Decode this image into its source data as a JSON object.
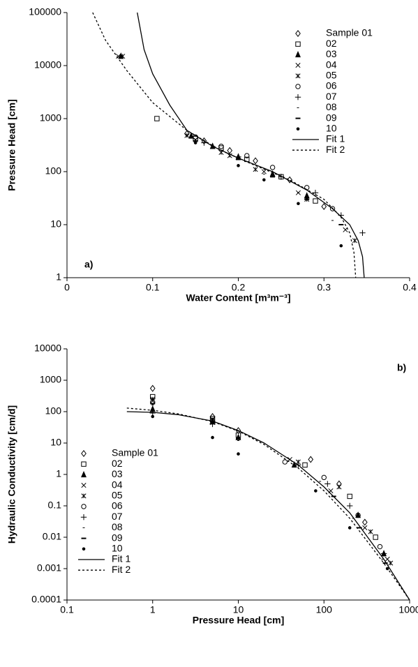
{
  "chart_data": [
    {
      "type": "scatter",
      "annotation": "a)",
      "xlabel": "Water Content [m³m⁻³]",
      "ylabel": "Pressure Head [cm]",
      "xlim": [
        0,
        0.4
      ],
      "xticks": [
        0,
        0.1,
        0.2,
        0.3,
        0.4
      ],
      "ylim": [
        1,
        100000
      ],
      "yticks": [
        1,
        10,
        100,
        1000,
        10000,
        100000
      ],
      "ylog": true,
      "xlog": false,
      "legend": "upper right",
      "color": "#000000",
      "series": [
        {
          "name": "Sample 01",
          "marker": "diamond",
          "x": [
            0.14,
            0.16,
            0.19,
            0.22,
            0.26,
            0.3
          ],
          "values": [
            520,
            380,
            250,
            160,
            70,
            22
          ]
        },
        {
          "name": "02",
          "marker": "square",
          "x": [
            0.105,
            0.15,
            0.18,
            0.21,
            0.25,
            0.29
          ],
          "values": [
            1000,
            420,
            280,
            170,
            80,
            28
          ]
        },
        {
          "name": "03",
          "marker": "triangle",
          "x": [
            0.063,
            0.145,
            0.17,
            0.2,
            0.24,
            0.28
          ],
          "values": [
            15000,
            470,
            300,
            190,
            90,
            35
          ]
        },
        {
          "name": "04",
          "marker": "cross",
          "x": [
            0.06,
            0.15,
            0.19,
            0.23,
            0.27,
            0.325
          ],
          "values": [
            15000,
            400,
            200,
            100,
            40,
            8
          ]
        },
        {
          "name": "05",
          "marker": "star",
          "x": [
            0.065,
            0.14,
            0.18,
            0.22,
            0.28,
            0.336
          ],
          "values": [
            15000,
            480,
            230,
            110,
            30,
            5
          ]
        },
        {
          "name": "06",
          "marker": "circle",
          "x": [
            0.15,
            0.18,
            0.21,
            0.24,
            0.28,
            0.31
          ],
          "values": [
            450,
            300,
            200,
            120,
            50,
            20
          ]
        },
        {
          "name": "07",
          "marker": "plus",
          "x": [
            0.16,
            0.2,
            0.25,
            0.29,
            0.32,
            0.345
          ],
          "values": [
            350,
            190,
            80,
            40,
            15,
            7
          ]
        },
        {
          "name": "08",
          "marker": "shortdash",
          "x": [
            0.15,
            0.19,
            0.23,
            0.27,
            0.31
          ],
          "values": [
            380,
            190,
            90,
            40,
            12
          ]
        },
        {
          "name": "09",
          "marker": "dash",
          "x": [
            0.15,
            0.2,
            0.24,
            0.28,
            0.32
          ],
          "values": [
            380,
            170,
            80,
            30,
            10
          ]
        },
        {
          "name": "10",
          "marker": "dot",
          "x": [
            0.15,
            0.2,
            0.23,
            0.27,
            0.32
          ],
          "values": [
            350,
            130,
            70,
            25,
            4
          ]
        },
        {
          "name": "Fit 1",
          "line": "solid",
          "x": [
            0.082,
            0.09,
            0.1,
            0.12,
            0.14,
            0.17,
            0.2,
            0.24,
            0.28,
            0.31,
            0.33,
            0.34,
            0.345,
            0.347
          ],
          "values": [
            100000,
            20000,
            7000,
            1800,
            600,
            300,
            180,
            100,
            45,
            20,
            10,
            5,
            2.5,
            1
          ]
        },
        {
          "name": "Fit 2",
          "line": "dashed",
          "x": [
            0.03,
            0.045,
            0.07,
            0.1,
            0.14,
            0.18,
            0.22,
            0.26,
            0.3,
            0.32,
            0.33,
            0.335,
            0.337
          ],
          "values": [
            100000,
            30000,
            8000,
            2000,
            600,
            250,
            130,
            70,
            30,
            14,
            7,
            3,
            1
          ]
        }
      ]
    },
    {
      "type": "scatter",
      "annotation": "b)",
      "xlabel": "Pressure Head [cm]",
      "ylabel": "Hydraulic Conductivity [cm/d]",
      "xlim": [
        0.1,
        1000
      ],
      "xticks": [
        0.1,
        1,
        10,
        100,
        1000
      ],
      "ylim": [
        0.0001,
        10000
      ],
      "yticks": [
        0.0001,
        0.001,
        0.01,
        0.1,
        1,
        10,
        100,
        1000,
        10000
      ],
      "ylog": true,
      "xlog": true,
      "legend": "center left",
      "color": "#000000",
      "series": [
        {
          "name": "Sample 01",
          "marker": "diamond",
          "x": [
            1,
            5,
            10,
            70,
            150,
            300
          ],
          "values": [
            550,
            70,
            25,
            3,
            0.5,
            0.03
          ]
        },
        {
          "name": "02",
          "marker": "square",
          "x": [
            1,
            5,
            10,
            60,
            200,
            400
          ],
          "values": [
            300,
            60,
            18,
            2,
            0.2,
            0.01
          ]
        },
        {
          "name": "03",
          "marker": "triangle",
          "x": [
            1,
            5,
            10,
            45,
            250,
            500
          ],
          "values": [
            120,
            50,
            15,
            2,
            0.05,
            0.003
          ]
        },
        {
          "name": "04",
          "marker": "cross",
          "x": [
            1,
            5,
            40,
            120,
            300,
            550
          ],
          "values": [
            220,
            45,
            3,
            0.3,
            0.02,
            0.002
          ]
        },
        {
          "name": "05",
          "marker": "star",
          "x": [
            1,
            5,
            50,
            150,
            350,
            600
          ],
          "values": [
            250,
            55,
            2.5,
            0.4,
            0.015,
            0.0015
          ]
        },
        {
          "name": "06",
          "marker": "circle",
          "x": [
            1,
            5,
            35,
            100,
            250,
            450
          ],
          "values": [
            200,
            50,
            2.5,
            0.8,
            0.05,
            0.005
          ]
        },
        {
          "name": "07",
          "marker": "plus",
          "x": [
            1,
            5,
            50,
            110,
            200,
            500
          ],
          "values": [
            90,
            40,
            2,
            0.5,
            0.1,
            0.003
          ]
        },
        {
          "name": "08",
          "marker": "shortdash",
          "x": [
            1,
            5,
            10,
            90,
            220,
            480
          ],
          "values": [
            160,
            45,
            12,
            0.6,
            0.04,
            0.002
          ]
        },
        {
          "name": "09",
          "marker": "dash",
          "x": [
            1,
            5,
            10,
            130,
            260,
            520
          ],
          "values": [
            180,
            50,
            14,
            0.2,
            0.02,
            0.0015
          ]
        },
        {
          "name": "10",
          "marker": "dot",
          "x": [
            1,
            5,
            10,
            80,
            200,
            550
          ],
          "values": [
            70,
            15,
            4.5,
            0.3,
            0.02,
            0.001
          ]
        },
        {
          "name": "Fit 1",
          "line": "solid",
          "x": [
            0.5,
            1,
            2,
            5,
            10,
            20,
            50,
            100,
            200,
            500,
            1000
          ],
          "values": [
            100,
            95,
            80,
            50,
            25,
            10,
            2,
            0.4,
            0.06,
            0.002,
            0.0001
          ]
        },
        {
          "name": "Fit 2",
          "line": "dashed",
          "x": [
            0.5,
            1,
            2,
            5,
            10,
            20,
            50,
            100,
            200,
            500,
            1000
          ],
          "values": [
            130,
            110,
            85,
            48,
            24,
            9,
            1.6,
            0.3,
            0.04,
            0.0015,
            0.0001
          ]
        }
      ]
    }
  ]
}
